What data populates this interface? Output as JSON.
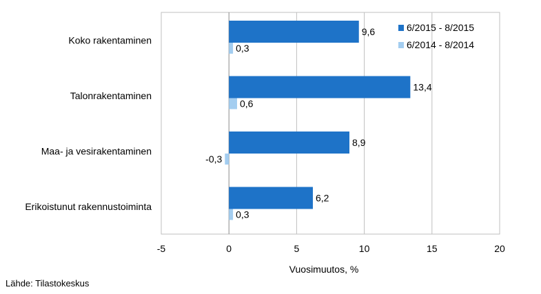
{
  "chart_data": {
    "type": "bar",
    "orientation": "horizontal",
    "categories": [
      "Koko rakentaminen",
      "Talonrakentaminen",
      "Maa- ja vesirakentaminen",
      "Erikoistunut rakennustoiminta"
    ],
    "series": [
      {
        "name": "6/2015 - 8/2015",
        "values": [
          9.6,
          13.4,
          8.9,
          6.2
        ],
        "labels": [
          "9,6",
          "13,4",
          "8,9",
          "6,2"
        ],
        "color": "#1e73c8"
      },
      {
        "name": "6/2014 - 8/2014",
        "values": [
          0.3,
          0.6,
          -0.3,
          0.3
        ],
        "labels": [
          "0,3",
          "0,6",
          "-0,3",
          "0,3"
        ],
        "color": "#a3cdf0"
      }
    ],
    "xlabel": "Vuosimuutos, %",
    "xlim": [
      -5,
      20
    ],
    "xticks": [
      -5,
      0,
      5,
      10,
      15,
      20
    ],
    "xtick_labels": [
      "-5",
      "0",
      "5",
      "10",
      "15",
      "20"
    ],
    "grid": "vertical",
    "legend_position": "top-right"
  },
  "source": "Lähde: Tilastokeskus"
}
